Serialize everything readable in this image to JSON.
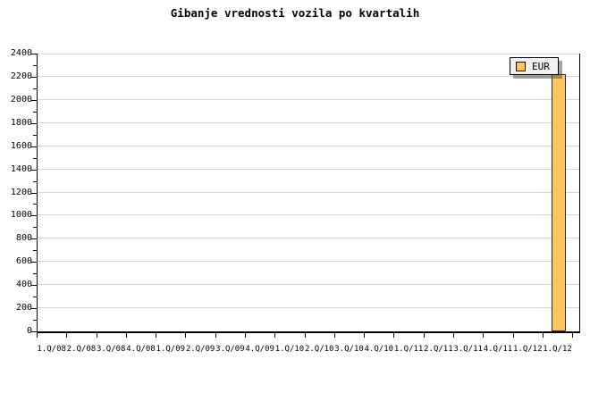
{
  "chart_data": {
    "type": "bar",
    "title": "Gibanje vrednosti vozila po kvartalih",
    "xlabel": "",
    "ylabel": "",
    "categories": [
      "1.Q/08",
      "2.Q/08",
      "3.Q/08",
      "4.Q/08",
      "1.Q/09",
      "2.Q/09",
      "3.Q/09",
      "4.Q/09",
      "1.Q/10",
      "2.Q/10",
      "3.Q/10",
      "4.Q/10",
      "1.Q/11",
      "2.Q/11",
      "3.Q/11",
      "4.Q/11",
      "1.Q/12",
      "1.Q/12"
    ],
    "series": [
      {
        "name": "EUR",
        "values": [
          null,
          null,
          null,
          null,
          null,
          null,
          null,
          null,
          null,
          null,
          null,
          null,
          null,
          null,
          null,
          null,
          null,
          2220
        ]
      }
    ],
    "ylim": [
      0,
      2400
    ],
    "yticks": [
      0,
      200,
      400,
      600,
      800,
      1000,
      1200,
      1400,
      1600,
      1800,
      2000,
      2200,
      2400
    ],
    "ytick_step": 200,
    "yminor_step": 100,
    "grid": "horizontal-major",
    "legend": {
      "position": "top-right",
      "entries": [
        "EUR"
      ]
    }
  },
  "colors": {
    "background": "#ffffff",
    "text": "#000000",
    "axis": "#000000",
    "grid": "#d6d6d6",
    "bar_fill": "#fdc55f",
    "bar_border": "#2a2a2a",
    "legend_bg": "#f0f0f0",
    "legend_border": "#000000",
    "legend_shadow_rgba": "rgba(70,70,70,0.5)"
  }
}
